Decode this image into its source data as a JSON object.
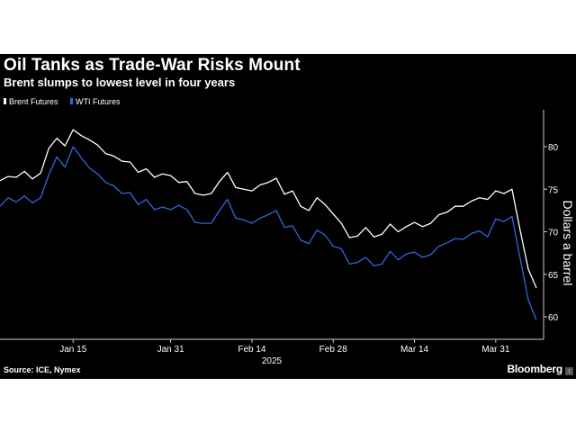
{
  "title": "Oil Tanks as Trade-War Risks Mount",
  "subtitle": "Brent slumps to lowest level in four years",
  "source": "Source: ICE, Nymex",
  "brand": "Bloomberg",
  "colors": {
    "background": "#000000",
    "brent": "#ffffff",
    "wti": "#2f68d8",
    "text": "#ffffff",
    "axis": "#cccccc"
  },
  "chart_data": {
    "type": "line",
    "title": "Oil Tanks as Trade-War Risks Mount",
    "subtitle": "Brent slumps to lowest level in four years",
    "xlabel": "2025",
    "ylabel": "Dollars a barrel",
    "ylim": [
      57,
      85
    ],
    "y_ticks": [
      60,
      65,
      70,
      75,
      80
    ],
    "x_ticks": [
      "Jan 15",
      "Jan 31",
      "Feb 14",
      "Feb 28",
      "Mar 14",
      "Mar 31"
    ],
    "x_tick_index": [
      9,
      21,
      31,
      41,
      51,
      61
    ],
    "grid": false,
    "legend_position": "top-left",
    "y_axis_side": "right",
    "series": [
      {
        "name": "Brent Futures",
        "color": "#ffffff",
        "values": [
          76.0,
          76.5,
          76.4,
          77.1,
          76.2,
          76.9,
          79.8,
          81.0,
          80.1,
          82.0,
          81.3,
          80.8,
          80.2,
          79.2,
          78.9,
          78.3,
          78.2,
          77.0,
          77.4,
          76.4,
          76.8,
          76.6,
          75.8,
          75.9,
          74.5,
          74.3,
          74.5,
          75.9,
          77.0,
          75.2,
          75.0,
          74.8,
          75.5,
          75.8,
          76.3,
          74.4,
          74.8,
          73.0,
          72.5,
          74.0,
          73.2,
          72.1,
          71.0,
          69.3,
          69.5,
          70.5,
          69.4,
          69.7,
          70.9,
          70.0,
          70.6,
          71.1,
          70.6,
          71.0,
          72.0,
          72.3,
          73.0,
          73.0,
          73.6,
          74.0,
          73.8,
          74.8,
          74.5,
          75.0,
          70.2,
          65.6,
          63.4
        ]
      },
      {
        "name": "WTI Futures",
        "color": "#2f68d8",
        "values": [
          73.0,
          74.0,
          73.5,
          74.2,
          73.4,
          74.0,
          76.7,
          78.8,
          77.6,
          80.0,
          78.7,
          77.5,
          76.8,
          75.8,
          75.4,
          74.5,
          74.6,
          73.2,
          73.8,
          72.6,
          72.9,
          72.6,
          73.1,
          72.6,
          71.1,
          71.0,
          71.0,
          72.5,
          73.8,
          71.6,
          71.4,
          71.0,
          71.6,
          72.0,
          72.5,
          70.5,
          70.7,
          69.0,
          68.6,
          70.2,
          69.6,
          68.3,
          68.0,
          66.2,
          66.4,
          67.0,
          66.0,
          66.2,
          67.7,
          66.7,
          67.4,
          67.6,
          67.0,
          67.3,
          68.3,
          68.7,
          69.2,
          69.1,
          69.8,
          70.1,
          69.4,
          71.5,
          71.2,
          71.8,
          66.9,
          62.0,
          59.6
        ]
      }
    ]
  }
}
